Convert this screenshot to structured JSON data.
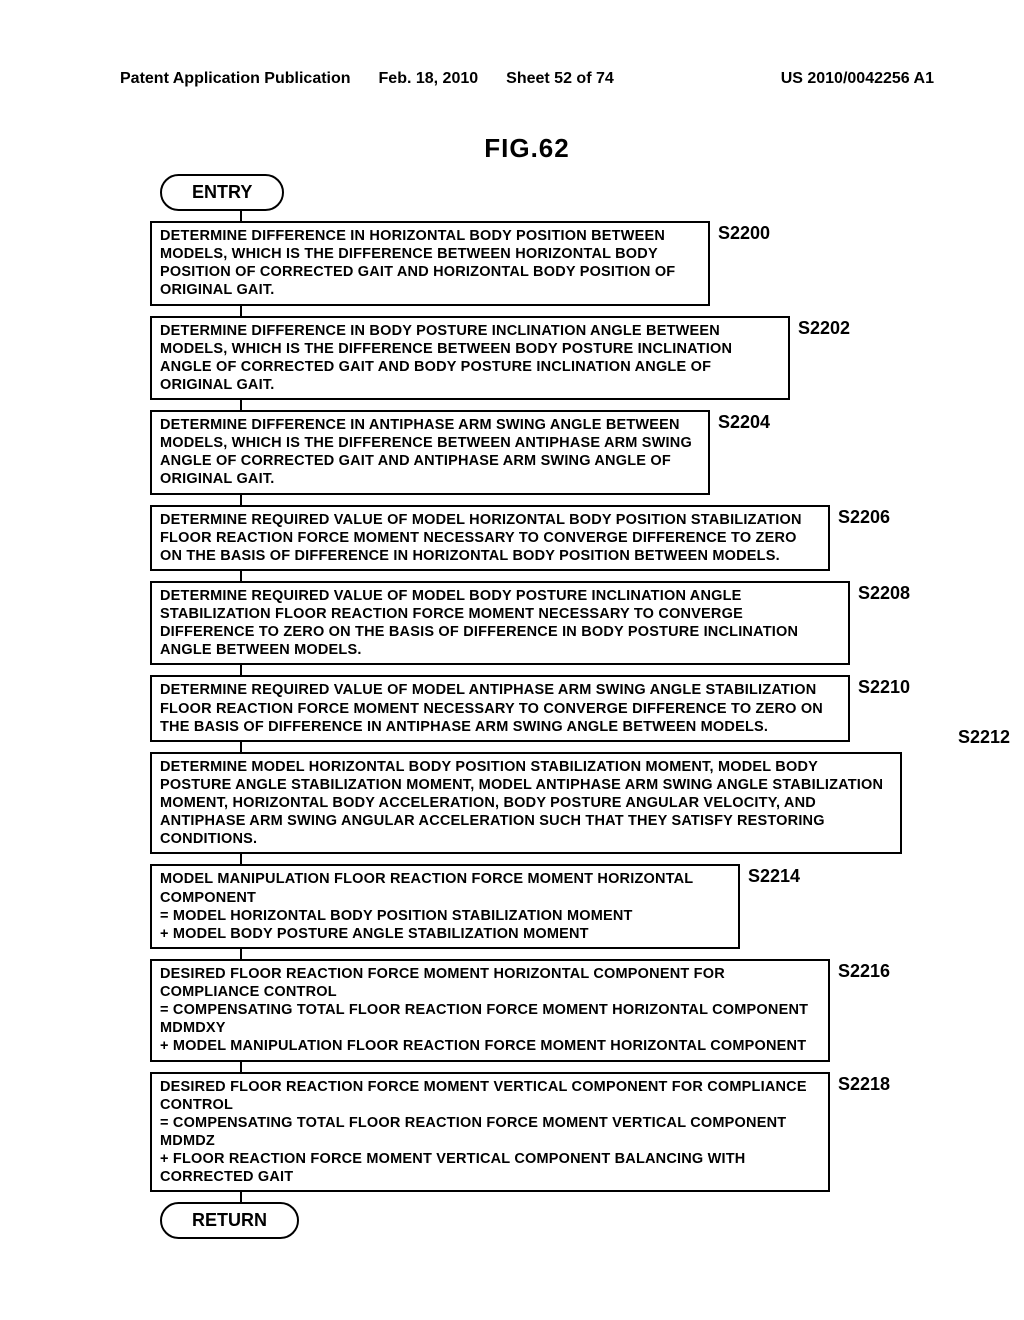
{
  "header": {
    "left": "Patent Application Publication",
    "date": "Feb. 18, 2010",
    "sheet": "Sheet 52 of 74",
    "pubno": "US 2010/0042256 A1"
  },
  "figure": {
    "title": "FIG.62",
    "entry": "ENTRY",
    "return": "RETURN"
  },
  "steps": [
    {
      "label": "S2200",
      "w": "w1",
      "text": "DETERMINE DIFFERENCE IN HORIZONTAL BODY POSITION BETWEEN MODELS, WHICH IS THE DIFFERENCE BETWEEN HORIZONTAL BODY POSITION OF CORRECTED GAIT AND HORIZONTAL BODY POSITION OF ORIGINAL GAIT."
    },
    {
      "label": "S2202",
      "w": "w2",
      "text": "DETERMINE DIFFERENCE IN BODY POSTURE INCLINATION ANGLE BETWEEN MODELS, WHICH IS THE DIFFERENCE BETWEEN BODY POSTURE INCLINATION ANGLE OF CORRECTED GAIT AND BODY POSTURE INCLINATION ANGLE OF ORIGINAL GAIT."
    },
    {
      "label": "S2204",
      "w": "w3",
      "text": "DETERMINE DIFFERENCE IN ANTIPHASE ARM SWING ANGLE BETWEEN MODELS, WHICH IS THE DIFFERENCE BETWEEN ANTIPHASE ARM SWING ANGLE OF CORRECTED GAIT AND ANTIPHASE ARM SWING ANGLE OF ORIGINAL GAIT."
    },
    {
      "label": "S2206",
      "w": "w4",
      "text": "DETERMINE REQUIRED VALUE OF MODEL HORIZONTAL BODY POSITION STABILIZATION FLOOR REACTION FORCE MOMENT NECESSARY TO CONVERGE DIFFERENCE TO ZERO ON THE BASIS OF DIFFERENCE IN HORIZONTAL BODY POSITION BETWEEN MODELS."
    },
    {
      "label": "S2208",
      "w": "w5",
      "text": "DETERMINE REQUIRED VALUE OF MODEL BODY POSTURE INCLINATION ANGLE STABILIZATION FLOOR REACTION FORCE MOMENT NECESSARY TO CONVERGE DIFFERENCE TO ZERO ON THE BASIS OF DIFFERENCE IN BODY POSTURE INCLINATION ANGLE BETWEEN MODELS."
    },
    {
      "label": "S2210",
      "w": "w6",
      "text": "DETERMINE REQUIRED VALUE OF MODEL ANTIPHASE ARM SWING ANGLE STABILIZATION FLOOR REACTION FORCE MOMENT NECESSARY TO CONVERGE DIFFERENCE TO ZERO ON THE BASIS OF DIFFERENCE IN ANTIPHASE ARM SWING ANGLE BETWEEN MODELS.",
      "extraLabel": "S2212",
      "extraLabelTop": 52
    },
    {
      "label": "",
      "w": "w7",
      "text": "DETERMINE MODEL HORIZONTAL BODY POSITION STABILIZATION MOMENT, MODEL BODY POSTURE ANGLE STABILIZATION MOMENT, MODEL ANTIPHASE ARM SWING ANGLE STABILIZATION MOMENT, HORIZONTAL BODY ACCELERATION, BODY POSTURE ANGULAR VELOCITY, AND ANTIPHASE ARM SWING ANGULAR ACCELERATION SUCH THAT THEY SATISFY RESTORING CONDITIONS."
    },
    {
      "label": "S2214",
      "w": "w8",
      "text": "MODEL MANIPULATION FLOOR REACTION FORCE MOMENT HORIZONTAL COMPONENT\n= MODEL HORIZONTAL BODY POSITION STABILIZATION MOMENT\n+ MODEL BODY POSTURE ANGLE STABILIZATION MOMENT"
    },
    {
      "label": "S2216",
      "w": "w9",
      "text": "DESIRED FLOOR REACTION FORCE MOMENT HORIZONTAL COMPONENT FOR COMPLIANCE CONTROL\n= COMPENSATING TOTAL FLOOR REACTION FORCE MOMENT HORIZONTAL COMPONENT Mdmdxy\n+ MODEL MANIPULATION FLOOR REACTION FORCE MOMENT HORIZONTAL COMPONENT"
    },
    {
      "label": "S2218",
      "w": "w10",
      "text": "DESIRED FLOOR REACTION FORCE MOMENT VERTICAL COMPONENT FOR COMPLIANCE CONTROL\n= COMPENSATING TOTAL FLOOR REACTION FORCE MOMENT VERTICAL COMPONENT Mdmdz\n+ FLOOR REACTION FORCE MOMENT VERTICAL COMPONENT BALANCING WITH CORRECTED GAIT"
    }
  ]
}
